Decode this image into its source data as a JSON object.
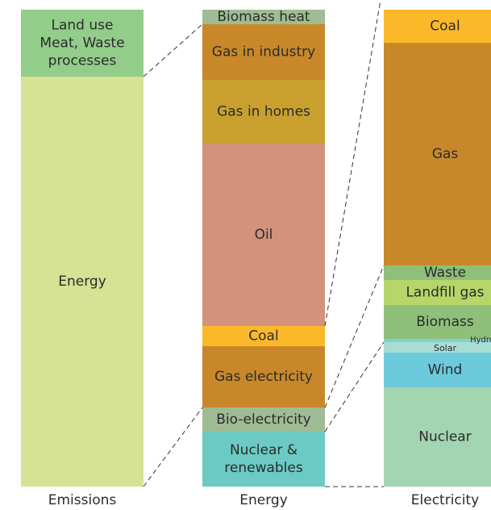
{
  "columns": [
    {
      "label": "Emissions",
      "segments": [
        {
          "lines": [
            "Land use",
            "Meat, Waste",
            "processes"
          ]
        },
        {
          "lines": [
            "Energy"
          ]
        }
      ]
    },
    {
      "label": "Energy",
      "segments": [
        {
          "lines": [
            "Biomass heat"
          ]
        },
        {
          "lines": [
            "Gas in industry"
          ]
        },
        {
          "lines": [
            "Gas in homes"
          ]
        },
        {
          "lines": [
            "Oil"
          ]
        },
        {
          "lines": [
            "Coal"
          ]
        },
        {
          "lines": [
            "Gas electricity"
          ]
        },
        {
          "lines": [
            "Bio-electricity"
          ]
        },
        {
          "lines": [
            "Nuclear &",
            "renewables"
          ]
        }
      ]
    },
    {
      "label": "Electricity",
      "segments": [
        {
          "lines": [
            "Coal"
          ]
        },
        {
          "lines": [
            "Gas"
          ]
        },
        {
          "lines": [
            "Waste"
          ]
        },
        {
          "lines": [
            "Landfill gas"
          ]
        },
        {
          "lines": [
            "Biomass"
          ]
        },
        {
          "lines": [
            "Hydro"
          ]
        },
        {
          "lines": [
            "Solar"
          ]
        },
        {
          "lines": [
            "Wind"
          ]
        },
        {
          "lines": [
            "Nuclear"
          ]
        }
      ]
    }
  ]
}
